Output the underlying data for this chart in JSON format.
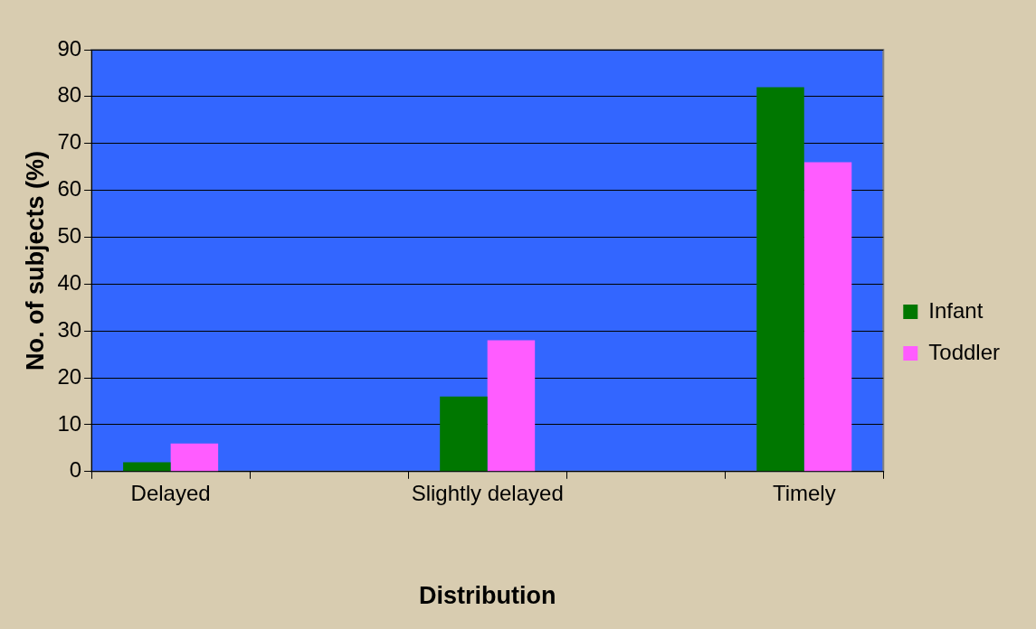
{
  "chart_data": {
    "type": "bar",
    "xlabel": "Distribution",
    "ylabel": "No. of subjects (%)",
    "categories": [
      "Delayed",
      null,
      "Slightly delayed",
      null,
      "Timely"
    ],
    "series": [
      {
        "name": "Infant",
        "color": "#007700",
        "values": [
          2,
          null,
          16,
          null,
          82
        ]
      },
      {
        "name": "Toddler",
        "color": "#ff5cff",
        "values": [
          6,
          null,
          28,
          null,
          66
        ]
      }
    ],
    "ylim": [
      0,
      90
    ],
    "yticks": [
      0,
      10,
      20,
      30,
      40,
      50,
      60,
      70,
      80,
      90
    ],
    "grid": "y",
    "legend": "right"
  }
}
